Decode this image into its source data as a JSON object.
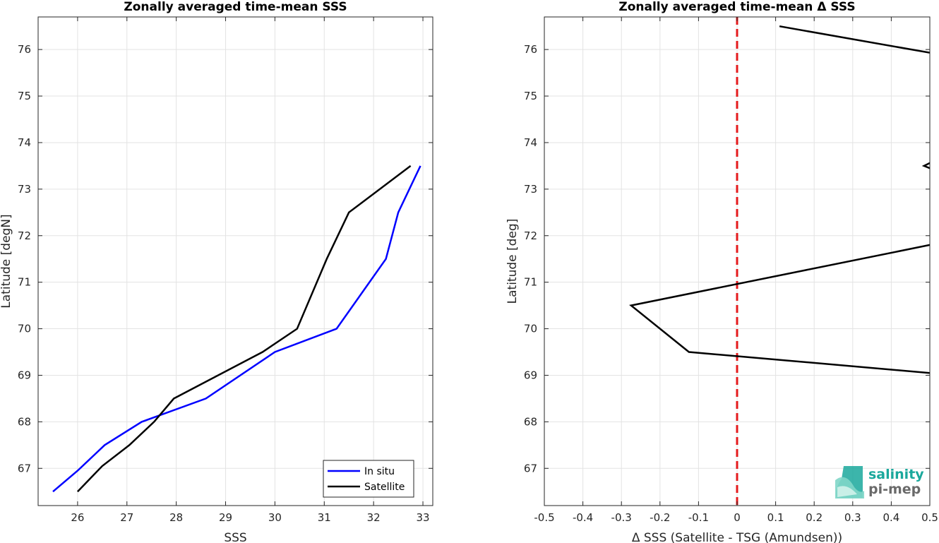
{
  "chart_data": [
    {
      "type": "line",
      "title": "Zonally averaged time-mean SSS",
      "xlabel": "SSS",
      "ylabel": "Latitude [degN]",
      "xlim": [
        25.2,
        33.2
      ],
      "ylim": [
        66.2,
        76.7
      ],
      "xticks": [
        26,
        27,
        28,
        29,
        30,
        31,
        32,
        33
      ],
      "yticks": [
        67,
        68,
        69,
        70,
        71,
        72,
        73,
        74,
        75,
        76
      ],
      "grid": true,
      "legend_position": "bottom-right",
      "series": [
        {
          "name": "In situ",
          "color": "#0000ff",
          "x": [
            25.5,
            26.0,
            26.55,
            27.3,
            28.6,
            30.0,
            31.25,
            32.25,
            32.5,
            32.95
          ],
          "y": [
            66.5,
            66.95,
            67.5,
            68.0,
            68.5,
            69.5,
            70.0,
            71.5,
            72.5,
            73.5
          ]
        },
        {
          "name": "Satellite",
          "color": "#000000",
          "x": [
            26.0,
            26.5,
            27.05,
            27.55,
            27.95,
            29.75,
            30.45,
            31.05,
            31.5,
            32.75
          ],
          "y": [
            66.5,
            67.05,
            67.5,
            68.0,
            68.5,
            69.5,
            70.0,
            71.5,
            72.5,
            73.5
          ]
        }
      ]
    },
    {
      "type": "line",
      "title": "Zonally averaged time-mean Δ SSS",
      "xlabel": "Δ SSS (Satellite - TSG (Amundsen))",
      "ylabel": "Latitude [deg]",
      "xlim": [
        -0.5,
        0.5
      ],
      "ylim": [
        66.2,
        76.7
      ],
      "xticks": [
        -0.5,
        -0.4,
        -0.3,
        -0.2,
        -0.1,
        0,
        0.1,
        0.2,
        0.3,
        0.4,
        0.5
      ],
      "yticks": [
        67,
        68,
        69,
        70,
        71,
        72,
        73,
        74,
        75,
        76
      ],
      "grid": true,
      "reference_line": {
        "x": 0,
        "color": "#e41a1c",
        "style": "dashed"
      },
      "series": [
        {
          "color": "#000000",
          "x": [
            0.11,
            0.5
          ],
          "y": [
            76.5,
            75.93
          ]
        },
        {
          "color": "#000000",
          "x": [
            0.5,
            0.485,
            0.5
          ],
          "y": [
            73.56,
            73.5,
            73.45
          ]
        },
        {
          "color": "#000000",
          "x": [
            0.5,
            -0.275,
            -0.125,
            0.5
          ],
          "y": [
            71.8,
            70.5,
            69.5,
            69.05
          ]
        }
      ]
    }
  ],
  "logo": {
    "line1": "salinity",
    "line2": "pi-mep",
    "color1": "#1aa89c",
    "color2": "#6a6a6a"
  }
}
